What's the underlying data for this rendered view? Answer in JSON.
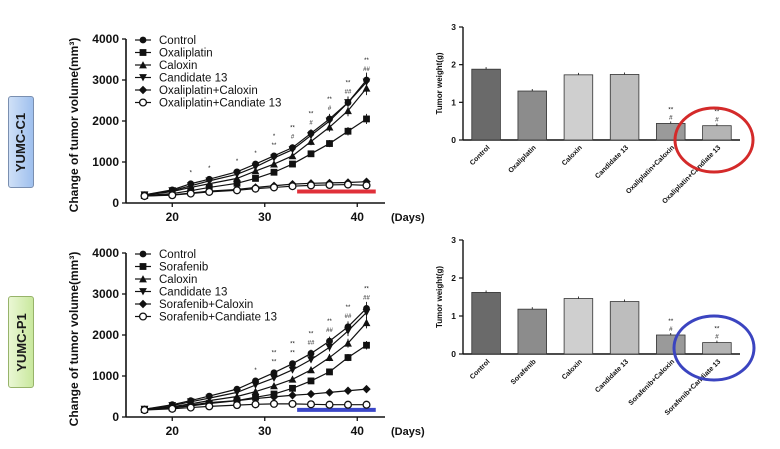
{
  "panels": {
    "top_label": "YUMC-C1",
    "bottom_label": "YUMC-P1"
  },
  "highlight_colors": {
    "top_line": "#e0303a",
    "top_circle": "#d42a2a",
    "bottom_line": "#3a46c8",
    "bottom_circle": "#3b44c0"
  },
  "chart_data": [
    {
      "id": "growth_top",
      "type": "line",
      "ylabel": "Change of tumor volume(mm³)",
      "xlabel": "(Days)",
      "xlim": [
        15,
        43
      ],
      "ylim": [
        0,
        4000
      ],
      "xticks": [
        "20",
        "30",
        "40"
      ],
      "yticks": [
        "0",
        "1000",
        "2000",
        "3000",
        "4000"
      ],
      "x": [
        17,
        20,
        22,
        24,
        27,
        29,
        31,
        33,
        35,
        37,
        39,
        41
      ],
      "markers": [
        "circle",
        "square",
        "triangle-up",
        "triangle-down",
        "diamond",
        "circle-open"
      ],
      "series": [
        {
          "name": "Control",
          "values": [
            200,
            320,
            470,
            580,
            760,
            950,
            1150,
            1350,
            1700,
            2050,
            2450,
            3000
          ]
        },
        {
          "name": "Oxaliplatin",
          "values": [
            180,
            230,
            300,
            380,
            480,
            600,
            750,
            950,
            1200,
            1450,
            1750,
            2050
          ]
        },
        {
          "name": "Caloxin",
          "values": [
            190,
            280,
            380,
            470,
            600,
            780,
            950,
            1150,
            1500,
            1850,
            2250,
            2800
          ]
        },
        {
          "name": "Candidate 13",
          "values": [
            200,
            300,
            420,
            540,
            700,
            880,
            1100,
            1300,
            1650,
            2000,
            2450,
            2950
          ]
        },
        {
          "name": "Oxaliplatin+Caloxin",
          "values": [
            170,
            200,
            240,
            290,
            330,
            380,
            420,
            460,
            480,
            490,
            500,
            520
          ]
        },
        {
          "name": "Oxaliplatin+Candiate 13",
          "values": [
            170,
            190,
            230,
            270,
            310,
            350,
            380,
            410,
            430,
            440,
            450,
            430
          ]
        }
      ],
      "annotations": [
        "*",
        "*",
        "*",
        "*",
        "*",
        "**",
        "**",
        "#",
        "**",
        "#",
        "**",
        "#",
        "**",
        "##",
        "**",
        "##"
      ]
    },
    {
      "id": "weight_top",
      "type": "bar",
      "ylabel": "Tumor weight(g)",
      "ylim": [
        0,
        3
      ],
      "yticks": [
        "0",
        "1",
        "2",
        "3"
      ],
      "categories": [
        "Control",
        "Oxaliplatin",
        "Caloxin",
        "Candidate 13",
        "Oxaliplatin+Caloxin",
        "Oxaliplatin+Candiate 13"
      ],
      "values": [
        1.88,
        1.3,
        1.73,
        1.74,
        0.44,
        0.38
      ],
      "annotations": [
        [
          "**",
          "#"
        ],
        [
          "**",
          "#"
        ]
      ]
    },
    {
      "id": "growth_bottom",
      "type": "line",
      "ylabel": "Change of tumor volume(mm³)",
      "xlabel": "(Days)",
      "xlim": [
        15,
        43
      ],
      "ylim": [
        0,
        4000
      ],
      "xticks": [
        "20",
        "30",
        "40"
      ],
      "yticks": [
        "0",
        "1000",
        "2000",
        "3000",
        "4000"
      ],
      "x": [
        17,
        20,
        22,
        24,
        27,
        29,
        31,
        33,
        35,
        37,
        39,
        41
      ],
      "markers": [
        "circle",
        "square",
        "triangle-up",
        "triangle-down",
        "diamond",
        "circle-open"
      ],
      "series": [
        {
          "name": "Control",
          "values": [
            190,
            300,
            400,
            510,
            680,
            880,
            1080,
            1300,
            1550,
            1850,
            2200,
            2650
          ]
        },
        {
          "name": "Sorafenib",
          "values": [
            180,
            220,
            270,
            330,
            400,
            480,
            560,
            700,
            880,
            1100,
            1450,
            1750
          ]
        },
        {
          "name": "Caloxin",
          "values": [
            180,
            250,
            320,
            400,
            500,
            620,
            760,
            920,
            1150,
            1450,
            1800,
            2300
          ]
        },
        {
          "name": "Candidate 13",
          "values": [
            190,
            280,
            370,
            460,
            600,
            780,
            950,
            1150,
            1400,
            1700,
            2100,
            2550
          ]
        },
        {
          "name": "Sorafenib+Caloxin",
          "values": [
            180,
            230,
            290,
            350,
            400,
            450,
            490,
            530,
            560,
            600,
            640,
            680
          ]
        },
        {
          "name": "Sorafenib+Candiate 13",
          "values": [
            170,
            200,
            230,
            260,
            290,
            310,
            320,
            320,
            310,
            300,
            300,
            300
          ]
        }
      ],
      "annotations": [
        "*",
        "**",
        "**",
        "**",
        "**",
        "**",
        "##",
        "**",
        "##",
        "**",
        "##",
        "**",
        "##"
      ]
    },
    {
      "id": "weight_bottom",
      "type": "bar",
      "ylabel": "Tumor weight(g)",
      "ylim": [
        0,
        3
      ],
      "yticks": [
        "0",
        "1",
        "2",
        "3"
      ],
      "categories": [
        "Control",
        "Sorafenib",
        "Caloxin",
        "Candidate 13",
        "Sorafenib+Caloxin",
        "Sorafenib+Candiate 13"
      ],
      "values": [
        1.62,
        1.18,
        1.46,
        1.38,
        0.5,
        0.3
      ],
      "annotations": [
        [
          "**",
          "#"
        ],
        [
          "**",
          "#"
        ]
      ]
    }
  ]
}
